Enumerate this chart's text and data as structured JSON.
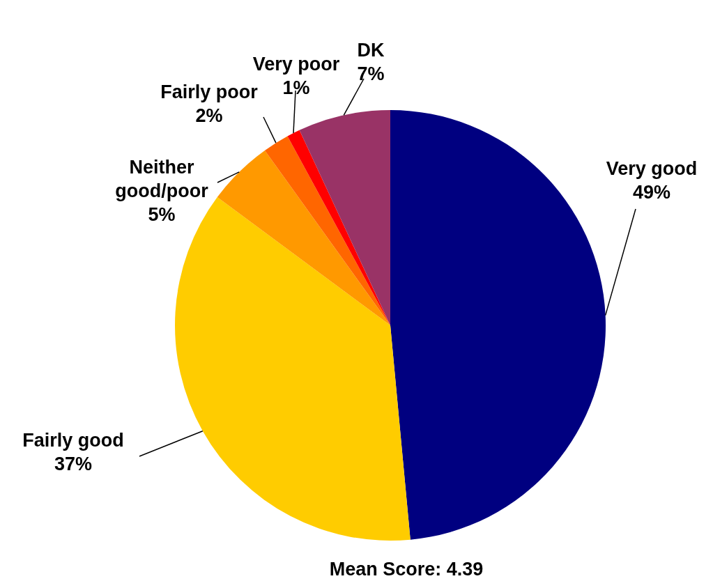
{
  "chart_data": {
    "type": "pie",
    "categories": [
      "Very good",
      "Fairly good",
      "Neither good/poor",
      "Fairly poor",
      "Very poor",
      "DK"
    ],
    "values": [
      49,
      37,
      5,
      2,
      1,
      7
    ],
    "value_labels": [
      "49%",
      "37%",
      "5%",
      "2%",
      "1%",
      "7%"
    ],
    "colors": [
      "#000080",
      "#ffcc00",
      "#ff9900",
      "#ff6600",
      "#ff0000",
      "#993366"
    ],
    "annotations": [
      "Mean Score: 4.39"
    ]
  }
}
